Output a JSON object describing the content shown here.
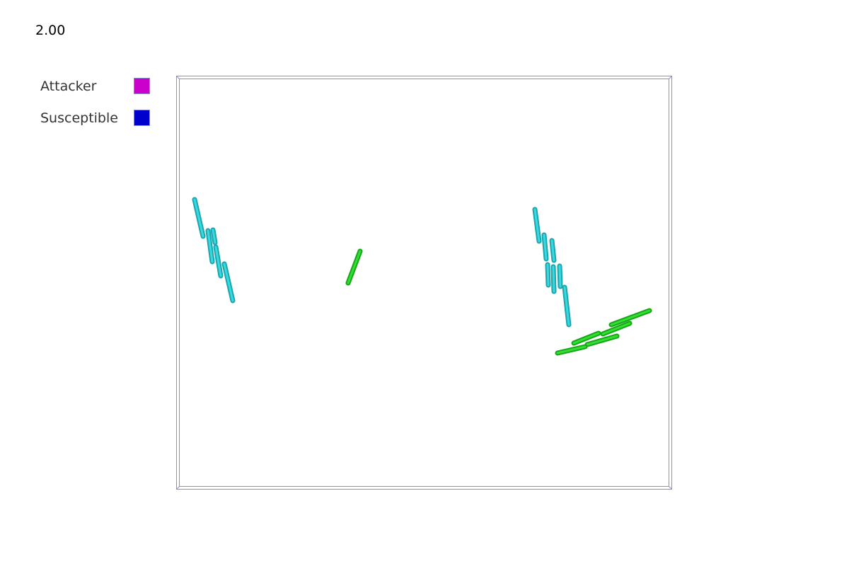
{
  "time_label": "2.00",
  "legend": {
    "items": [
      {
        "label": "Attacker",
        "color": "#cc00cc"
      },
      {
        "label": "Susceptible",
        "color": "#0000cc"
      }
    ]
  },
  "colors": {
    "border": "#8a8ad8",
    "cyan_cell": "#22d0d8",
    "green_cell": "#22cc22"
  }
}
